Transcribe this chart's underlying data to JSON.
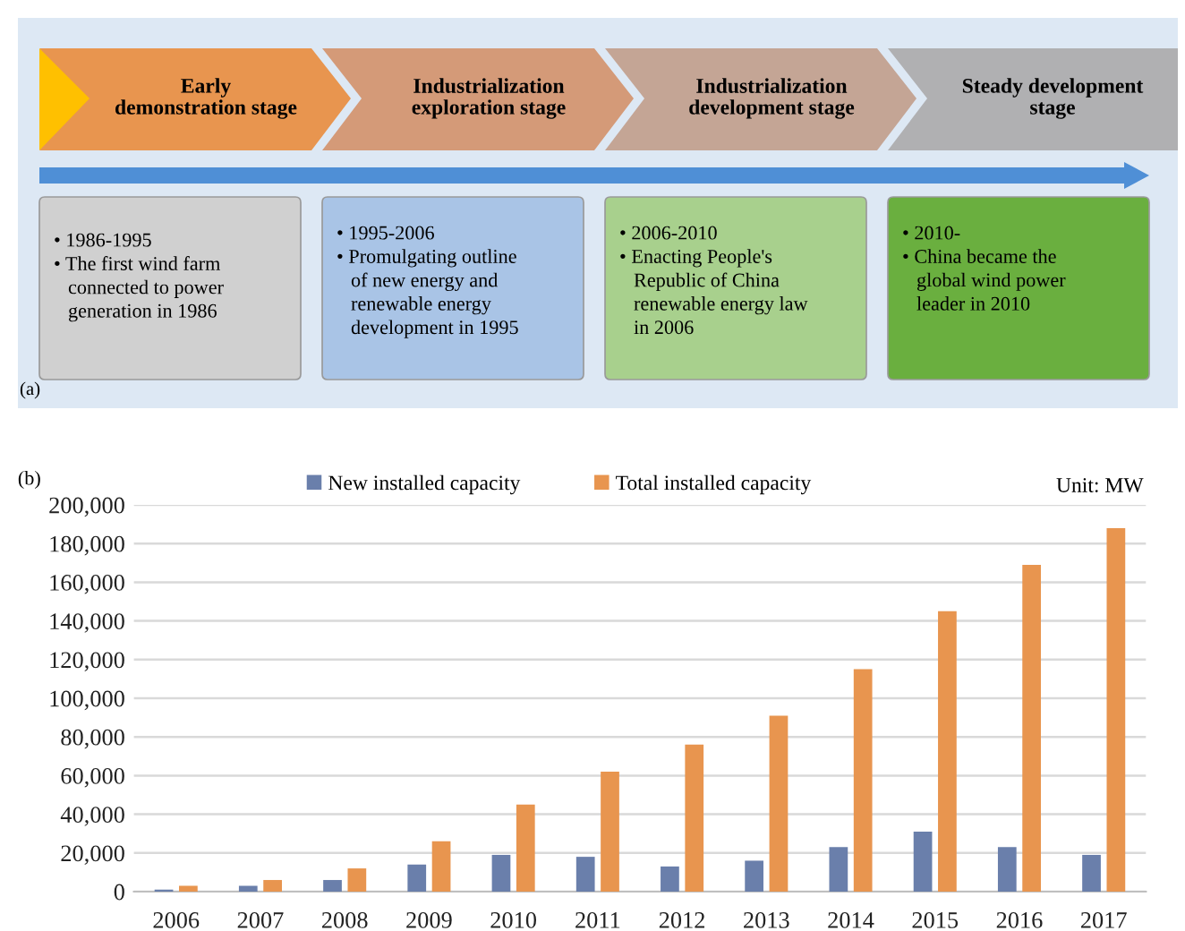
{
  "chart_data": [
    {
      "type": "other",
      "annotations": [
        "(a)",
        "Early\ndemonstration stage",
        "Industrialization\nexploration stage",
        "Industrialization\ndevelopment stage",
        "Steady development\nstage",
        "• 1986-1995",
        "• The first wind farm\nconnected to power\ngeneration in 1986",
        "• 1995-2006",
        "• Promulgating outline\nof new energy and\nrenewable energy\ndevelopment in 1995",
        "• 2006-2010",
        "• Enacting People's\nRepublic of China\nrenewable energy law\nin 2006",
        "• 2010-",
        "• China became the\nglobal wind power\nleader in 2010"
      ]
    },
    {
      "type": "bar",
      "categories": [
        "2006",
        "2007",
        "2008",
        "2009",
        "2010",
        "2011",
        "2012",
        "2013",
        "2014",
        "2015",
        "2016",
        "2017"
      ],
      "series": [
        {
          "name": "New installed capacity",
          "color": "#6a7fab",
          "values": [
            1000,
            3000,
            6000,
            14000,
            19000,
            18000,
            13000,
            16000,
            23000,
            31000,
            23000,
            19000
          ]
        },
        {
          "name": "Total installed capacity",
          "color": "#e8954f",
          "values": [
            3000,
            6000,
            12000,
            26000,
            45000,
            62000,
            76000,
            91000,
            115000,
            145000,
            169000,
            188000
          ]
        }
      ],
      "ylim": [
        0,
        200000
      ],
      "yticks": [
        0,
        {
          "value": 20000,
          "label": "20,000"
        },
        {
          "value": 40000,
          "label": "40,000"
        },
        {
          "value": 60000,
          "label": "60,000"
        },
        {
          "value": 80000,
          "label": "80,000"
        },
        {
          "value": 100000,
          "label": "100,000"
        },
        {
          "value": 120000,
          "label": "120,000"
        },
        {
          "value": 140000,
          "label": "140,000"
        },
        {
          "value": 160000,
          "label": "160,000"
        },
        {
          "value": 180000,
          "label": "180,000"
        },
        {
          "value": 200000,
          "label": "200,000"
        }
      ],
      "grid": "y",
      "legend": "top",
      "annotations": [
        "(b)",
        "Unit: MW"
      ]
    }
  ]
}
